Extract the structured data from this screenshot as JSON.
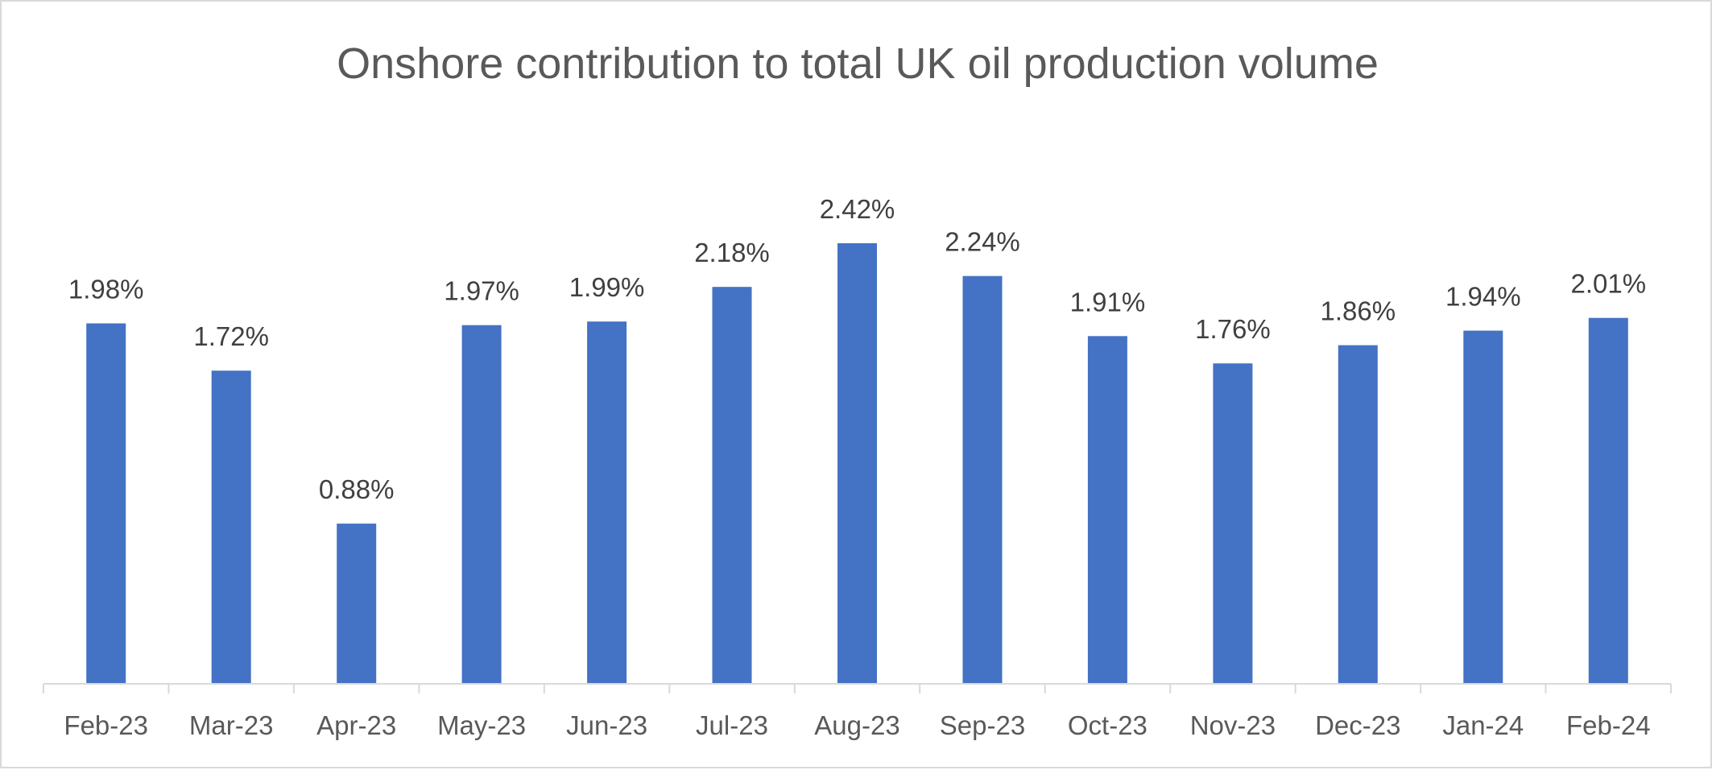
{
  "chart_data": {
    "type": "bar",
    "title": "Onshore contribution to total UK oil production volume",
    "xlabel": "",
    "ylabel": "",
    "categories": [
      "Feb-23",
      "Mar-23",
      "Apr-23",
      "May-23",
      "Jun-23",
      "Jul-23",
      "Aug-23",
      "Sep-23",
      "Oct-23",
      "Nov-23",
      "Dec-23",
      "Jan-24",
      "Feb-24"
    ],
    "values": [
      1.98,
      1.72,
      0.88,
      1.97,
      1.99,
      2.18,
      2.42,
      2.24,
      1.91,
      1.76,
      1.86,
      1.94,
      2.01
    ],
    "data_labels": [
      "1.98%",
      "1.72%",
      "0.88%",
      "1.97%",
      "1.99%",
      "2.18%",
      "2.42%",
      "2.24%",
      "1.91%",
      "1.76%",
      "1.86%",
      "1.94%",
      "2.01%"
    ],
    "ylim": [
      0,
      2.42
    ],
    "grid": false,
    "legend": "none",
    "bar_color": "#4472C4",
    "axis_color": "#d9d9d9"
  }
}
